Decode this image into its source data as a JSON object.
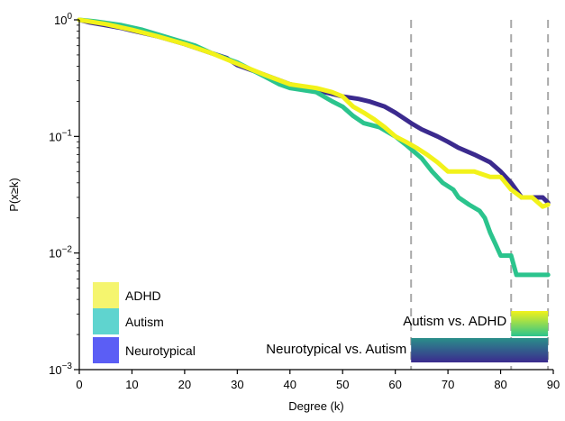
{
  "chart_data": {
    "type": "line",
    "title": "",
    "xlabel": "Degree (k)",
    "ylabel": "P(x≥k)",
    "xlim": [
      0,
      90
    ],
    "ylim": [
      0.001,
      1
    ],
    "yscale": "log",
    "x_ticks": [
      "0",
      "10",
      "20",
      "30",
      "40",
      "50",
      "60",
      "70",
      "80",
      "90"
    ],
    "y_ticks": [
      {
        "value": 1,
        "base": "10",
        "exp": "0"
      },
      {
        "value": 0.1,
        "base": "10",
        "exp": "−1"
      },
      {
        "value": 0.01,
        "base": "10",
        "exp": "−2"
      },
      {
        "value": 0.001,
        "base": "10",
        "exp": "−3"
      }
    ],
    "grid": false,
    "legend_position": "bottom-left",
    "series": [
      {
        "name": "Neurotypical",
        "color": "#3b2a8e",
        "legend_color": "#5b5ef5",
        "points": [
          [
            0,
            1.0
          ],
          [
            2,
            0.95
          ],
          [
            5,
            0.9
          ],
          [
            8,
            0.85
          ],
          [
            10,
            0.81
          ],
          [
            15,
            0.72
          ],
          [
            20,
            0.62
          ],
          [
            25,
            0.52
          ],
          [
            28,
            0.47
          ],
          [
            30,
            0.41
          ],
          [
            35,
            0.34
          ],
          [
            40,
            0.28
          ],
          [
            45,
            0.25
          ],
          [
            50,
            0.22
          ],
          [
            53,
            0.21
          ],
          [
            55,
            0.2
          ],
          [
            58,
            0.18
          ],
          [
            60,
            0.16
          ],
          [
            63,
            0.13
          ],
          [
            65,
            0.115
          ],
          [
            68,
            0.1
          ],
          [
            70,
            0.09
          ],
          [
            72,
            0.08
          ],
          [
            75,
            0.07
          ],
          [
            78,
            0.06
          ],
          [
            80,
            0.05
          ],
          [
            82,
            0.04
          ],
          [
            84,
            0.03
          ],
          [
            86,
            0.03
          ],
          [
            88,
            0.03
          ],
          [
            89,
            0.027
          ]
        ]
      },
      {
        "name": "Autism",
        "color": "#2bc48d",
        "legend_color": "#5fd4cf",
        "points": [
          [
            0,
            1.0
          ],
          [
            3,
            0.97
          ],
          [
            8,
            0.9
          ],
          [
            12,
            0.82
          ],
          [
            18,
            0.68
          ],
          [
            22,
            0.6
          ],
          [
            25,
            0.52
          ],
          [
            30,
            0.43
          ],
          [
            35,
            0.33
          ],
          [
            38,
            0.28
          ],
          [
            40,
            0.26
          ],
          [
            45,
            0.24
          ],
          [
            48,
            0.2
          ],
          [
            50,
            0.18
          ],
          [
            52,
            0.15
          ],
          [
            54,
            0.13
          ],
          [
            57,
            0.12
          ],
          [
            60,
            0.1
          ],
          [
            62,
            0.085
          ],
          [
            65,
            0.065
          ],
          [
            67,
            0.05
          ],
          [
            69,
            0.04
          ],
          [
            71,
            0.035
          ],
          [
            72,
            0.03
          ],
          [
            74,
            0.026
          ],
          [
            76,
            0.023
          ],
          [
            77,
            0.02
          ],
          [
            78,
            0.015
          ],
          [
            79,
            0.012
          ],
          [
            80,
            0.0095
          ],
          [
            82,
            0.0095
          ],
          [
            83,
            0.0065
          ],
          [
            89,
            0.0065
          ]
        ]
      },
      {
        "name": "ADHD",
        "color": "#f2f21a",
        "legend_color": "#f5f56e",
        "points": [
          [
            0,
            1.0
          ],
          [
            5,
            0.92
          ],
          [
            10,
            0.82
          ],
          [
            15,
            0.72
          ],
          [
            20,
            0.62
          ],
          [
            25,
            0.52
          ],
          [
            30,
            0.42
          ],
          [
            35,
            0.34
          ],
          [
            40,
            0.28
          ],
          [
            45,
            0.26
          ],
          [
            48,
            0.24
          ],
          [
            50,
            0.22
          ],
          [
            52,
            0.18
          ],
          [
            54,
            0.16
          ],
          [
            56,
            0.14
          ],
          [
            58,
            0.12
          ],
          [
            60,
            0.1
          ],
          [
            62,
            0.09
          ],
          [
            64,
            0.08
          ],
          [
            66,
            0.07
          ],
          [
            68,
            0.06
          ],
          [
            70,
            0.05
          ],
          [
            72,
            0.05
          ],
          [
            75,
            0.05
          ],
          [
            78,
            0.045
          ],
          [
            80,
            0.045
          ],
          [
            82,
            0.035
          ],
          [
            84,
            0.03
          ],
          [
            86,
            0.03
          ],
          [
            88,
            0.025
          ],
          [
            89,
            0.026
          ]
        ]
      }
    ],
    "vlines": [
      63,
      82,
      89
    ],
    "comparison_bars": [
      {
        "label": "Autism vs. ADHD",
        "x_start": 82,
        "x_end": 89,
        "colors": [
          "#2bc48d",
          "#f2f21a"
        ]
      },
      {
        "label": "Neurotypical vs. Autism",
        "x_start": 63,
        "x_end": 89,
        "colors": [
          "#2bc48d",
          "#3b2a8e"
        ]
      }
    ],
    "legend": [
      {
        "label": "ADHD",
        "color": "#f5f56e"
      },
      {
        "label": "Autism",
        "color": "#5fd4cf"
      },
      {
        "label": "Neurotypical",
        "color": "#5b5ef5"
      }
    ]
  }
}
